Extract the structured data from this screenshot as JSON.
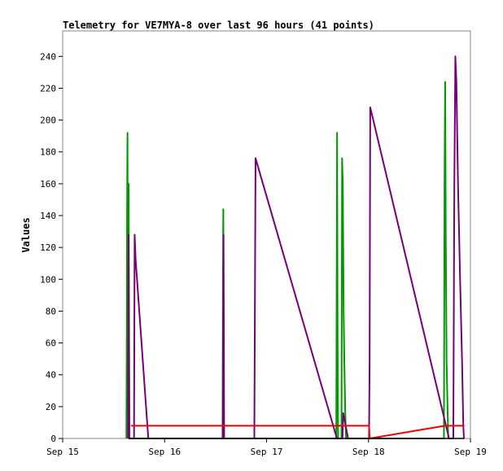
{
  "chart_data": {
    "type": "line",
    "title": "Telemetry for VE7MYA-8 over last 96 hours (41 points)",
    "xlabel": "",
    "ylabel": "Values",
    "x_domain": [
      "Sep 15",
      "Sep 19"
    ],
    "x_ticks": [
      "Sep 15",
      "Sep 16",
      "Sep 17",
      "Sep 18",
      "Sep 19"
    ],
    "ylim": [
      0,
      256
    ],
    "y_ticks": [
      0,
      20,
      40,
      60,
      80,
      100,
      120,
      140,
      160,
      180,
      200,
      220,
      240
    ],
    "grid": false,
    "series": [
      {
        "color": "#009900",
        "points": [
          [
            15.625,
            0
          ],
          [
            15.628,
            48
          ],
          [
            15.632,
            144
          ],
          [
            15.636,
            192
          ],
          [
            15.642,
            16
          ],
          [
            15.647,
            160
          ],
          [
            15.652,
            64
          ],
          [
            15.656,
            0
          ],
          [
            16.568,
            0
          ],
          [
            16.572,
            96
          ],
          [
            16.576,
            144
          ],
          [
            16.58,
            0
          ],
          [
            17.684,
            0
          ],
          [
            17.688,
            96
          ],
          [
            17.692,
            192
          ],
          [
            17.697,
            64
          ],
          [
            17.702,
            0
          ],
          [
            17.735,
            0
          ],
          [
            17.741,
            176
          ],
          [
            17.748,
            160
          ],
          [
            17.756,
            80
          ],
          [
            17.763,
            48
          ],
          [
            17.772,
            16
          ],
          [
            17.78,
            0
          ],
          [
            18.74,
            0
          ],
          [
            18.746,
            160
          ],
          [
            18.752,
            224
          ],
          [
            18.758,
            128
          ],
          [
            18.766,
            48
          ],
          [
            18.774,
            24
          ],
          [
            18.782,
            0
          ]
        ]
      },
      {
        "color": "#770077",
        "points": [
          [
            15.64,
            0
          ],
          [
            15.646,
            128
          ],
          [
            15.652,
            0
          ],
          [
            15.7,
            0
          ],
          [
            15.706,
            128
          ],
          [
            15.716,
            112
          ],
          [
            15.84,
            0
          ],
          [
            16.572,
            0
          ],
          [
            16.578,
            128
          ],
          [
            16.584,
            0
          ],
          [
            16.88,
            0
          ],
          [
            16.886,
            88
          ],
          [
            16.892,
            176
          ],
          [
            17.69,
            0
          ],
          [
            17.745,
            0
          ],
          [
            17.752,
            16
          ],
          [
            17.8,
            0
          ],
          [
            18.005,
            0
          ],
          [
            18.011,
            48
          ],
          [
            18.017,
            208
          ],
          [
            18.79,
            0
          ],
          [
            18.832,
            0
          ],
          [
            18.842,
            160
          ],
          [
            18.852,
            240
          ],
          [
            18.862,
            224
          ],
          [
            18.878,
            160
          ],
          [
            18.9,
            96
          ],
          [
            18.918,
            48
          ],
          [
            18.93,
            8
          ],
          [
            18.936,
            0
          ]
        ]
      },
      {
        "color": "#ee0000",
        "points": [
          [
            15.672,
            8
          ],
          [
            18.005,
            8
          ],
          [
            18.012,
            0
          ],
          [
            18.75,
            8
          ],
          [
            18.94,
            8
          ]
        ]
      },
      {
        "color": "#000000",
        "points": [
          [
            15.65,
            0
          ],
          [
            18.94,
            0
          ]
        ]
      }
    ]
  }
}
